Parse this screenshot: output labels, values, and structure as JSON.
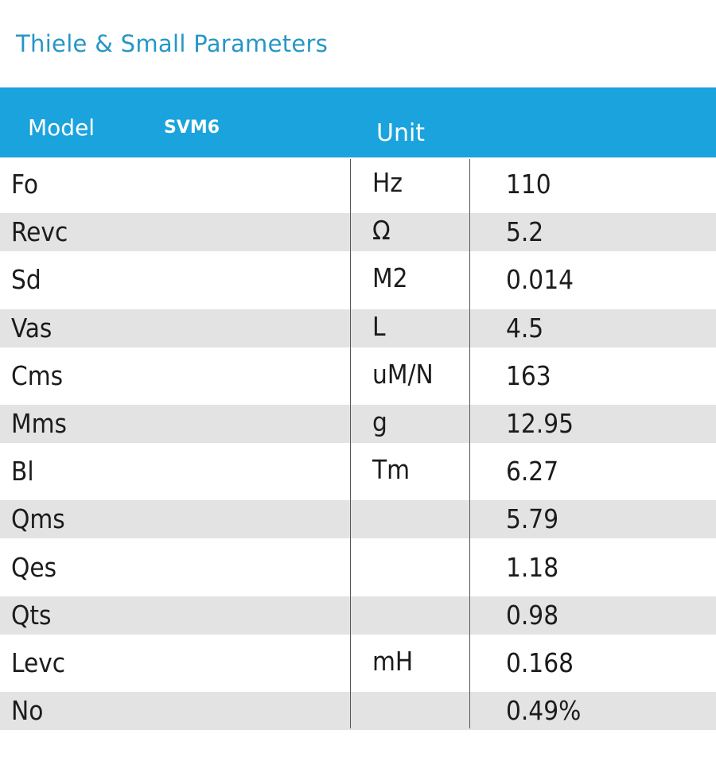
{
  "title": "Thiele & Small Parameters",
  "header": {
    "model_label": "Model",
    "model_value": "SVM6",
    "unit_label": "Unit"
  },
  "colors": {
    "title": "#2596c8",
    "header_bg": "#1aa3dc",
    "stripe": "#e3e3e4"
  },
  "rows": [
    {
      "param": "Fo",
      "unit": "Hz",
      "value": "110"
    },
    {
      "param": "Revc",
      "unit": "Ω",
      "value": "5.2"
    },
    {
      "param": "Sd",
      "unit": "M2",
      "value": "0.014"
    },
    {
      "param": "Vas",
      "unit": "L",
      "value": "4.5"
    },
    {
      "param": "Cms",
      "unit": "uM/N",
      "value": "163"
    },
    {
      "param": "Mms",
      "unit": "g",
      "value": "12.95"
    },
    {
      "param": "Bl",
      "unit": "Tm",
      "value": "6.27"
    },
    {
      "param": "Qms",
      "unit": "",
      "value": "5.79"
    },
    {
      "param": "Qes",
      "unit": "",
      "value": "1.18"
    },
    {
      "param": "Qts",
      "unit": "",
      "value": "0.98"
    },
    {
      "param": "Levc",
      "unit": "mH",
      "value": "0.168"
    },
    {
      "param": "No",
      "unit": "",
      "value": "0.49%"
    }
  ]
}
